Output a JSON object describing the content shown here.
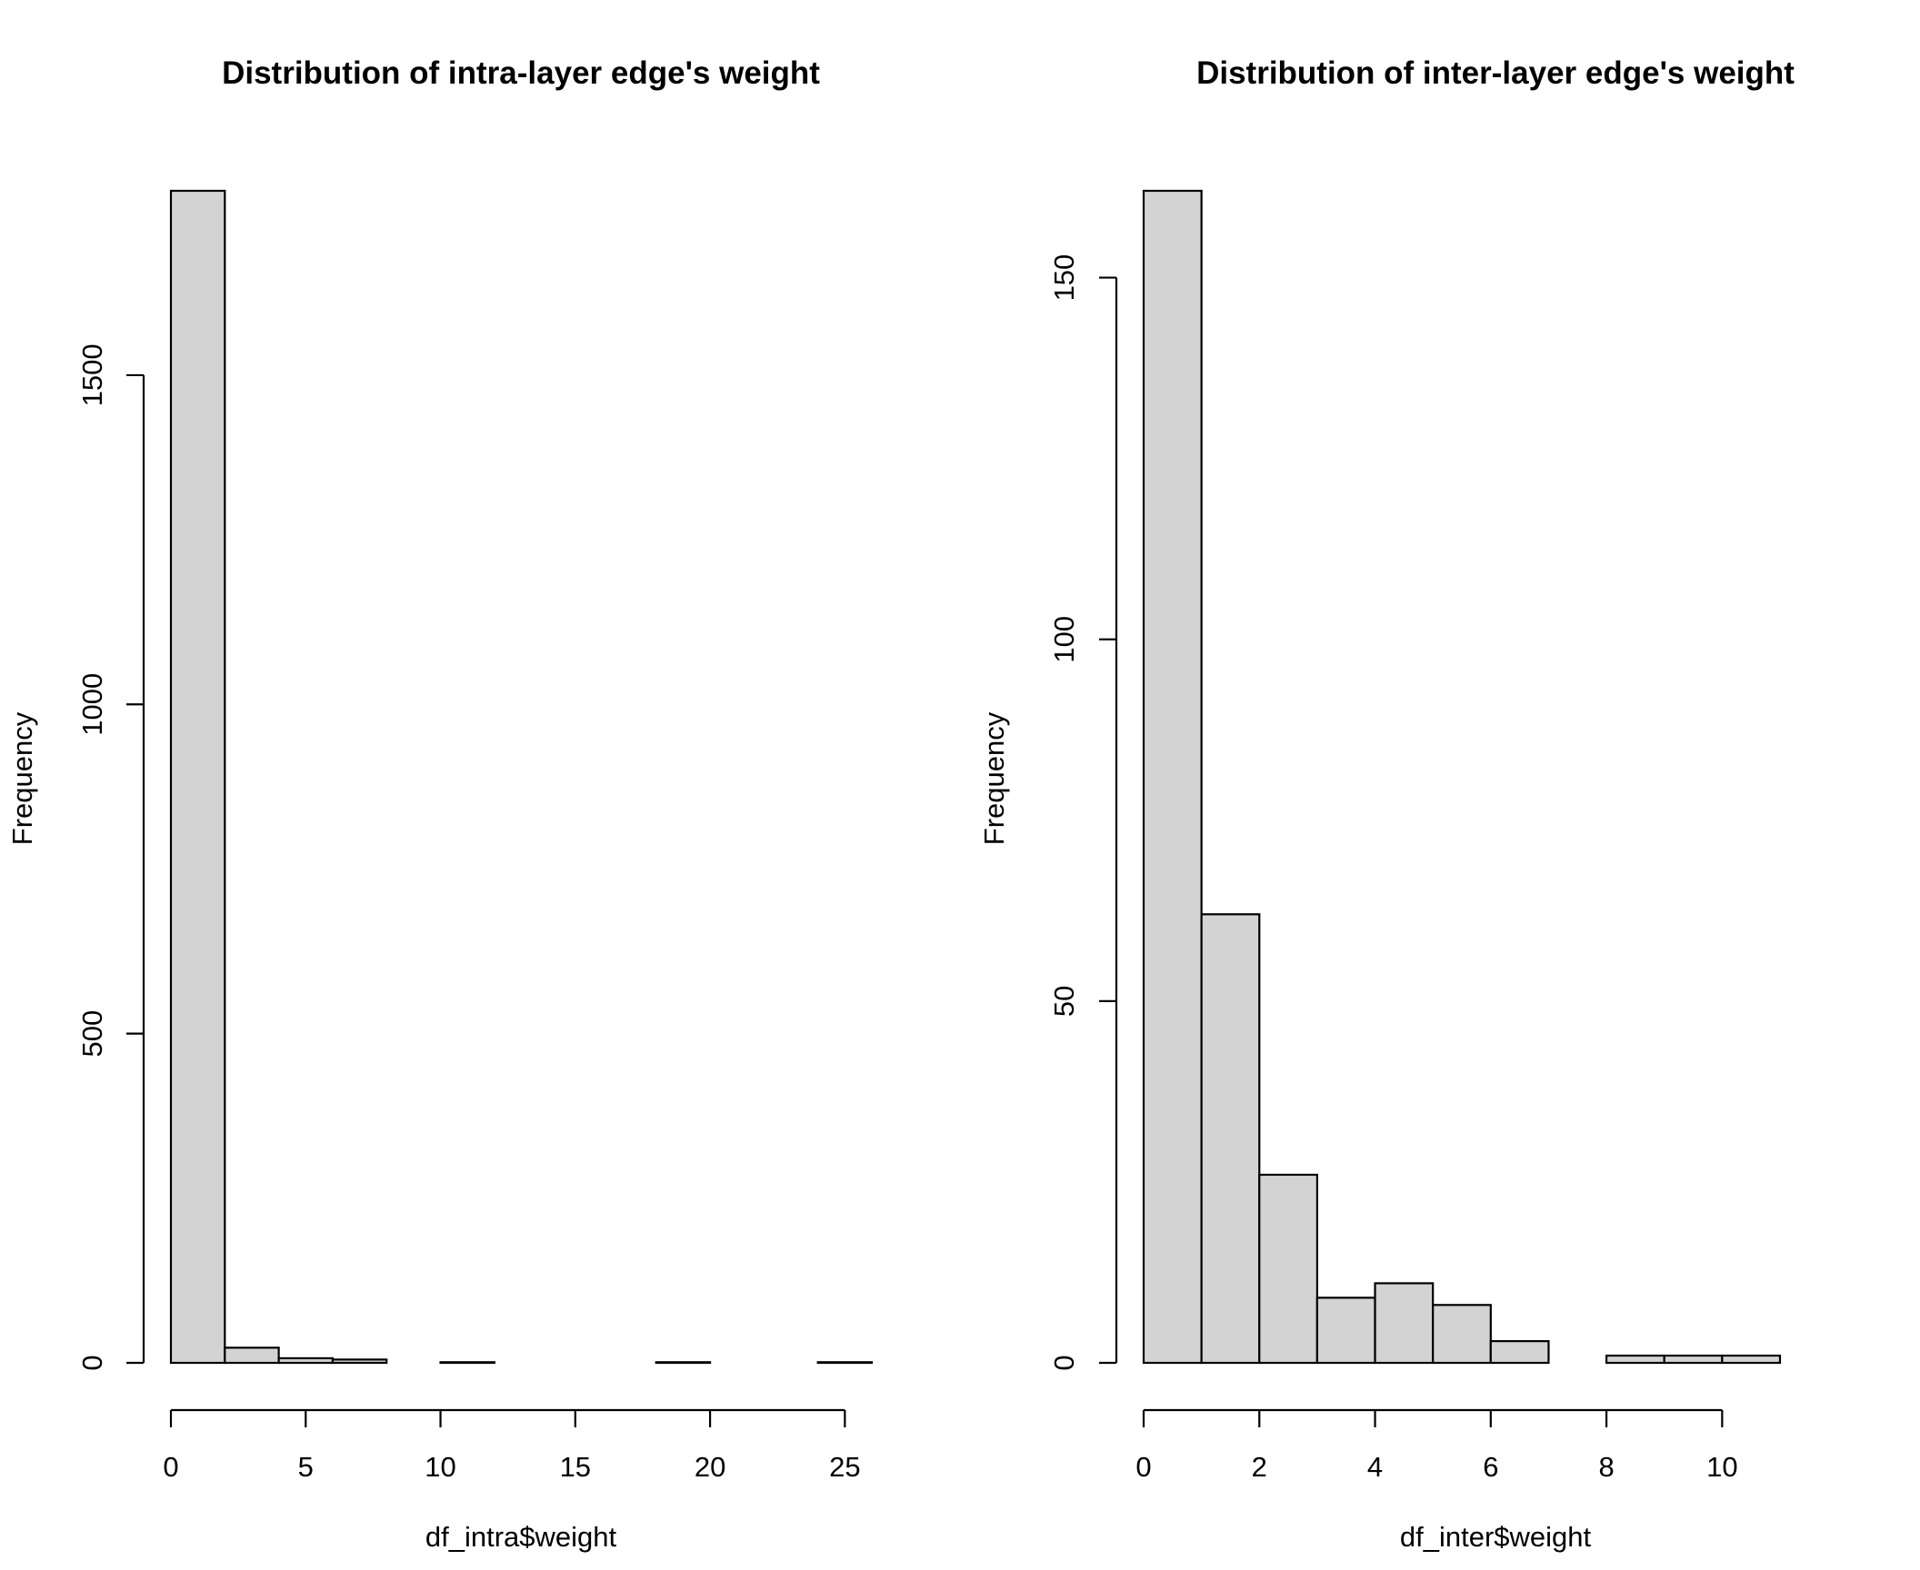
{
  "chart_data": [
    {
      "type": "bar",
      "title": "Distribution of intra-layer edge's weight",
      "xlabel": "df_intra$weight",
      "ylabel": "Frequency",
      "bins": [
        {
          "x0": 0,
          "x1": 2,
          "count": 1780
        },
        {
          "x0": 2,
          "x1": 4,
          "count": 23
        },
        {
          "x0": 4,
          "x1": 6,
          "count": 7
        },
        {
          "x0": 6,
          "x1": 8,
          "count": 5
        },
        {
          "x0": 8,
          "x1": 10,
          "count": 0
        },
        {
          "x0": 10,
          "x1": 12,
          "count": 1
        },
        {
          "x0": 12,
          "x1": 14,
          "count": 0
        },
        {
          "x0": 14,
          "x1": 16,
          "count": 0
        },
        {
          "x0": 16,
          "x1": 18,
          "count": 0
        },
        {
          "x0": 18,
          "x1": 20,
          "count": 1
        },
        {
          "x0": 20,
          "x1": 22,
          "count": 0
        },
        {
          "x0": 22,
          "x1": 24,
          "count": 0
        },
        {
          "x0": 24,
          "x1": 26,
          "count": 1
        }
      ],
      "xlim": [
        0,
        26
      ],
      "ylim": [
        0,
        1780
      ],
      "xticks": [
        0,
        5,
        10,
        15,
        20,
        25
      ],
      "yticks": [
        0,
        500,
        1000,
        1500
      ],
      "bar_color": "#d3d3d3",
      "edge_color": "#000000",
      "grid": false
    },
    {
      "type": "bar",
      "title": "Distribution of inter-layer edge's weight",
      "xlabel": "df_inter$weight",
      "ylabel": "Frequency",
      "bins": [
        {
          "x0": 0,
          "x1": 1,
          "count": 162
        },
        {
          "x0": 1,
          "x1": 2,
          "count": 62
        },
        {
          "x0": 2,
          "x1": 3,
          "count": 26
        },
        {
          "x0": 3,
          "x1": 4,
          "count": 9
        },
        {
          "x0": 4,
          "x1": 5,
          "count": 11
        },
        {
          "x0": 5,
          "x1": 6,
          "count": 8
        },
        {
          "x0": 6,
          "x1": 7,
          "count": 3
        },
        {
          "x0": 7,
          "x1": 8,
          "count": 0
        },
        {
          "x0": 8,
          "x1": 9,
          "count": 1
        },
        {
          "x0": 9,
          "x1": 10,
          "count": 1
        },
        {
          "x0": 10,
          "x1": 11,
          "count": 1
        }
      ],
      "xlim": [
        0,
        11
      ],
      "ylim": [
        0,
        162
      ],
      "xticks": [
        0,
        2,
        4,
        6,
        8,
        10
      ],
      "yticks": [
        0,
        50,
        100,
        150
      ],
      "bar_color": "#d3d3d3",
      "edge_color": "#000000",
      "grid": false
    }
  ]
}
